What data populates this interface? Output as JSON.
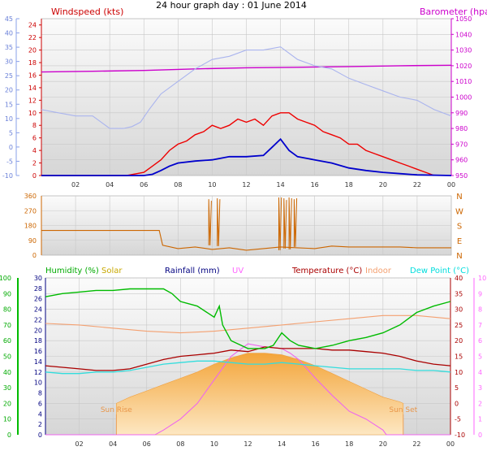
{
  "chart_data": [
    {
      "type": "line",
      "title": "24 hour graph day : 01 June 2014",
      "left_axis_label": "Windspeed (kts)",
      "right_axis_label": "Barometer (hpa)",
      "outer_axis_ticks": [
        "-10",
        "-5",
        "0",
        "5",
        "10",
        "15",
        "20",
        "25",
        "30",
        "35",
        "40",
        "45"
      ],
      "wind_ticks": [
        "0",
        "2",
        "4",
        "6",
        "8",
        "10",
        "12",
        "14",
        "16",
        "18",
        "20",
        "22",
        "24"
      ],
      "baro_ticks": [
        "950",
        "960",
        "970",
        "980",
        "990",
        "1000",
        "1010",
        "1020",
        "1030",
        "1040",
        "1050"
      ],
      "x_ticks": [
        "02",
        "04",
        "06",
        "08",
        "10",
        "12",
        "14",
        "16",
        "18",
        "20",
        "22",
        "00"
      ],
      "ylim_wind": [
        0,
        25
      ],
      "ylim_baro": [
        950,
        1050
      ],
      "series": [
        {
          "key": "barometer",
          "color": "#cc00cc",
          "x": [
            0,
            3,
            6,
            9,
            12,
            15,
            18,
            21,
            24
          ],
          "values": [
            1016,
            1016.5,
            1017,
            1018,
            1018.7,
            1019,
            1019.5,
            1020,
            1020.3
          ]
        },
        {
          "key": "outer",
          "color": "#aab4ee",
          "x": [
            0,
            1,
            2,
            3,
            4,
            4.8,
            5.3,
            5.8,
            6.3,
            7,
            8,
            9,
            10,
            11,
            12,
            13,
            14,
            15,
            16,
            17,
            18,
            19,
            20,
            21,
            22,
            23,
            24
          ],
          "values": [
            10.5,
            10,
            9.5,
            9.5,
            7.5,
            7.5,
            7.8,
            8.5,
            10.5,
            13,
            15,
            17,
            18.5,
            19,
            20,
            20,
            20.5,
            18.5,
            17.5,
            17,
            15.5,
            14.5,
            13.5,
            12.5,
            12,
            10.5,
            9.5
          ]
        },
        {
          "key": "gust",
          "color": "#ee0000",
          "x": [
            0,
            5,
            6,
            6.5,
            7,
            7.5,
            8,
            8.5,
            9,
            9.5,
            10,
            10.5,
            11,
            11.5,
            12,
            12.5,
            13,
            13.5,
            14,
            14.5,
            15,
            15.5,
            16,
            16.5,
            17,
            17.5,
            18,
            18.5,
            19,
            19.5,
            20,
            20.5,
            21,
            21.5,
            22,
            22.5,
            23
          ],
          "values": [
            0,
            0,
            0.5,
            1.5,
            2.5,
            4,
            5,
            5.5,
            6.5,
            7,
            8,
            7.5,
            8,
            9,
            8.5,
            9,
            8,
            9.5,
            10,
            10,
            9,
            8.5,
            8,
            7,
            6.5,
            6,
            5,
            5,
            4,
            3.5,
            3,
            2.5,
            2,
            1.5,
            1,
            0.5,
            0
          ]
        },
        {
          "key": "avg",
          "color": "#0000cc",
          "x": [
            0,
            6,
            6.5,
            7,
            7.5,
            8,
            9,
            10,
            11,
            12,
            13,
            13.5,
            14,
            14.5,
            15,
            16,
            17,
            18,
            19,
            20,
            21,
            22,
            24
          ],
          "values": [
            0,
            0,
            0.2,
            0.8,
            1.5,
            2,
            2.3,
            2.5,
            3,
            3,
            3.2,
            4.5,
            5.8,
            4,
            3,
            2.5,
            2,
            1.2,
            0.8,
            0.5,
            0.3,
            0.1,
            0
          ]
        }
      ]
    },
    {
      "type": "line",
      "y_ticks": [
        "0",
        "90",
        "180",
        "270",
        "360"
      ],
      "compass_labels": [
        "N",
        "W",
        "S",
        "E",
        "N"
      ],
      "ylim": [
        0,
        360
      ],
      "series": [
        {
          "key": "direction",
          "color": "#cc6600",
          "x": [
            0,
            1,
            2,
            3,
            4,
            5,
            6,
            6.9,
            7.1,
            8,
            9,
            10,
            11,
            12,
            13,
            14,
            15,
            16,
            17,
            18,
            19,
            20,
            21,
            22,
            23,
            24
          ],
          "values": [
            150,
            150,
            150,
            150,
            150,
            150,
            150,
            150,
            60,
            40,
            50,
            35,
            45,
            30,
            40,
            50,
            45,
            40,
            55,
            50,
            50,
            50,
            50,
            45,
            45,
            45
          ]
        }
      ],
      "spikes": [
        {
          "x": 9.8,
          "values": [
            340,
            60,
            330
          ]
        },
        {
          "x": 10.3,
          "values": [
            345,
            55,
            340
          ]
        },
        {
          "x": 13.9,
          "values": [
            350,
            30,
            350
          ]
        },
        {
          "x": 14.2,
          "values": [
            345,
            40,
            335
          ]
        },
        {
          "x": 14.5,
          "values": [
            350,
            35,
            345
          ]
        },
        {
          "x": 14.8,
          "values": [
            340,
            50,
            345
          ]
        }
      ]
    },
    {
      "type": "line",
      "legend": [
        {
          "label": "Humidity (%)",
          "color": "#00aa00"
        },
        {
          "label": "Solar",
          "color": "#c8a800"
        },
        {
          "label": "Rainfall (mm)",
          "color": "#000080"
        },
        {
          "label": "UV",
          "color": "#ff66ff"
        },
        {
          "label": "Temperature (°C)",
          "color": "#aa0000"
        },
        {
          "label": "Indoor",
          "color": "#f4a070"
        },
        {
          "label": "Dew Point (°C)",
          "color": "#00dddd"
        }
      ],
      "humidity_ticks": [
        "0",
        "10",
        "20",
        "30",
        "40",
        "50",
        "60",
        "70",
        "80",
        "90",
        "100"
      ],
      "rain_ticks": [
        "0",
        "2",
        "4",
        "6",
        "8",
        "10",
        "12",
        "14",
        "16",
        "18",
        "20",
        "22",
        "24",
        "26",
        "28",
        "30"
      ],
      "temp_ticks": [
        "-10",
        "-5",
        "0",
        "5",
        "10",
        "15",
        "20",
        "25",
        "30",
        "35",
        "40"
      ],
      "uv_ticks": [
        "0",
        "1",
        "2",
        "3",
        "4",
        "5",
        "6",
        "7",
        "8",
        "9",
        "10"
      ],
      "x_ticks": [
        "02",
        "04",
        "06",
        "08",
        "10",
        "12",
        "14",
        "16",
        "18",
        "20",
        "22",
        "00"
      ],
      "sun_rise_label": "Sun Rise",
      "sun_set_label": "Sun Set",
      "sun_rise_x": 4.2,
      "sun_set_x": 21.2,
      "ylim_humidity": [
        0,
        100
      ],
      "ylim_temp": [
        -10,
        40
      ],
      "series": [
        {
          "key": "humidity",
          "color": "#00bb00",
          "x": [
            0,
            1,
            2,
            3,
            4,
            5,
            6,
            7,
            7.5,
            8,
            9,
            10,
            10.3,
            10.5,
            11,
            12,
            13,
            13.5,
            14,
            14.5,
            15,
            16,
            17,
            18,
            19,
            20,
            21,
            22,
            23,
            24
          ],
          "values": [
            88,
            90,
            91,
            92,
            92,
            93,
            93,
            93,
            90,
            85,
            82,
            75,
            82,
            70,
            60,
            55,
            55,
            57,
            65,
            60,
            57,
            55,
            57,
            60,
            62,
            65,
            70,
            78,
            82,
            85
          ]
        },
        {
          "key": "indoor",
          "color": "#f4a070",
          "x": [
            0,
            2,
            4,
            6,
            8,
            10,
            12,
            14,
            16,
            18,
            20,
            22,
            24
          ],
          "values": [
            25.5,
            25,
            24,
            23,
            22.5,
            23,
            24,
            25,
            26,
            27,
            28,
            28,
            27
          ]
        },
        {
          "key": "temperature",
          "color": "#aa0000",
          "x": [
            0,
            1,
            2,
            3,
            4,
            5,
            6,
            7,
            8,
            9,
            10,
            11,
            12,
            13,
            14,
            15,
            16,
            17,
            18,
            19,
            20,
            21,
            22,
            23,
            24
          ],
          "values": [
            12,
            11.5,
            11,
            10.5,
            10.5,
            11,
            12.5,
            14,
            15,
            15.5,
            16,
            17,
            16.5,
            18,
            17.5,
            17.5,
            17.5,
            17,
            17,
            16.5,
            16,
            15,
            13.5,
            12.5,
            12
          ]
        },
        {
          "key": "dewpoint",
          "color": "#33dddd",
          "x": [
            0,
            1,
            2,
            3,
            4,
            5,
            6,
            7,
            8,
            9,
            10,
            11,
            12,
            13,
            14,
            15,
            16,
            17,
            18,
            19,
            20,
            21,
            22,
            23,
            24
          ],
          "values": [
            10,
            9.5,
            9.5,
            10,
            10,
            10.5,
            11.5,
            12.5,
            13,
            13.5,
            13.5,
            13,
            12.5,
            12.5,
            13,
            12.5,
            12,
            11.5,
            11,
            11,
            11,
            11,
            10.5,
            10.5,
            10
          ]
        },
        {
          "key": "uv",
          "color": "#ee66ee",
          "x": [
            0,
            6.5,
            7,
            8,
            9,
            10,
            11,
            12,
            13,
            14,
            14.5,
            15,
            16,
            17,
            18,
            19,
            20,
            20.2,
            24
          ],
          "values": [
            0,
            0,
            0.3,
            1,
            2,
            3.5,
            5,
            5.8,
            5.6,
            5.5,
            5.2,
            4.8,
            3.6,
            2.5,
            1.5,
            1,
            0.3,
            0,
            0
          ]
        },
        {
          "key": "solar",
          "color": "#ffb030",
          "x": [
            4.2,
            5,
            6,
            7,
            8,
            9,
            10,
            11,
            12,
            13,
            14,
            15,
            16,
            17,
            18,
            19,
            20,
            21,
            21.2
          ],
          "values": [
            0,
            2,
            4,
            6,
            8,
            10,
            12.5,
            14.5,
            16,
            16,
            15.5,
            14,
            12,
            9.5,
            7,
            4.5,
            2,
            0.5,
            0
          ]
        }
      ]
    }
  ]
}
